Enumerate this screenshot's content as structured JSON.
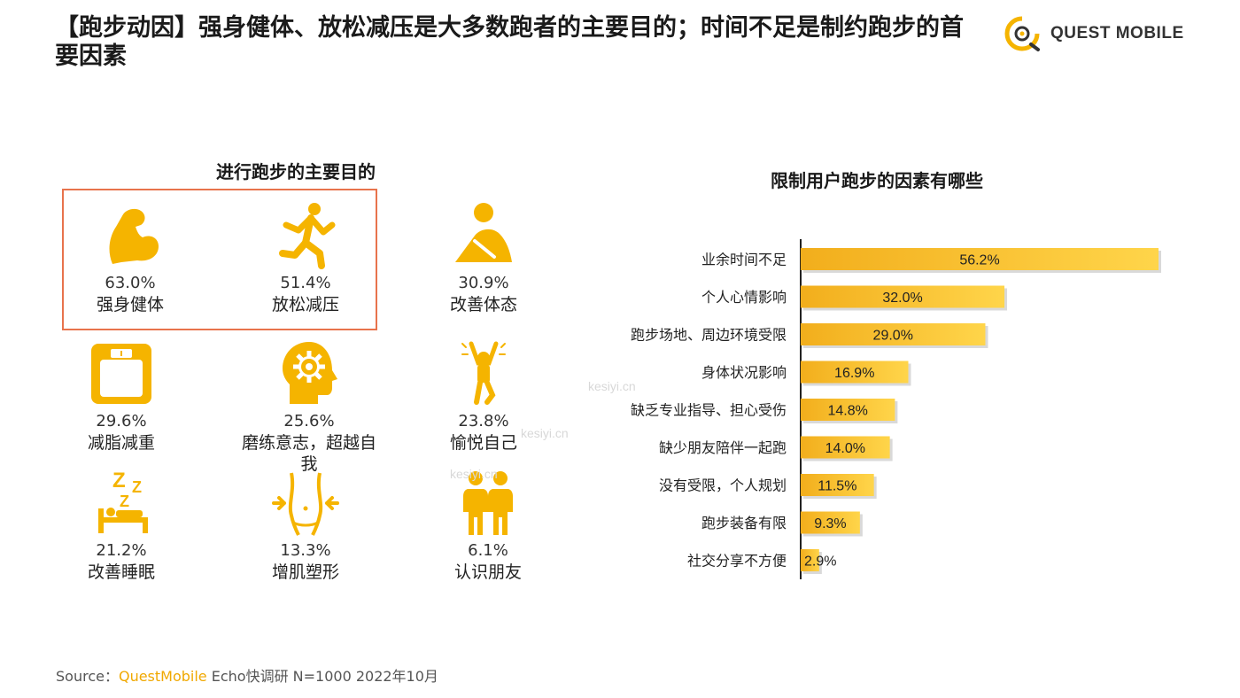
{
  "header": {
    "title": "【跑步动因】强身健体、放松减压是大多数跑者的主要目的；时间不足是制约跑步的首要因素",
    "logo_text": "QUEST MOBILE"
  },
  "left_panel": {
    "title": "进行跑步的主要目的",
    "items": [
      {
        "label": "强身健体",
        "value": "63.0%",
        "icon": "muscle-arm-icon"
      },
      {
        "label": "放松减压",
        "value": "51.4%",
        "icon": "runner-icon"
      },
      {
        "label": "改善体态",
        "value": "30.9%",
        "icon": "stretching-person-icon"
      },
      {
        "label": "减脂减重",
        "value": "29.6%",
        "icon": "scale-icon"
      },
      {
        "label": "磨练意志，超越自我",
        "value": "25.6%",
        "icon": "head-gear-icon"
      },
      {
        "label": "愉悦自己",
        "value": "23.8%",
        "icon": "celebrating-person-icon"
      },
      {
        "label": "改善睡眠",
        "value": "21.2%",
        "icon": "sleep-bed-icon"
      },
      {
        "label": "增肌塑形",
        "value": "13.3%",
        "icon": "waist-shape-icon"
      },
      {
        "label": "认识朋友",
        "value": "6.1%",
        "icon": "two-people-icon"
      }
    ]
  },
  "chart_data": {
    "type": "bar",
    "orientation": "horizontal",
    "title": "限制用户跑步的因素有哪些",
    "categories": [
      "业余时间不足",
      "个人心情影响",
      "跑步场地、周边环境受限",
      "身体状况影响",
      "缺乏专业指导、担心受伤",
      "缺少朋友陪伴一起跑",
      "没有受限，个人规划",
      "跑步装备有限",
      "社交分享不方便"
    ],
    "values": [
      56.2,
      32.0,
      29.0,
      16.9,
      14.8,
      14.0,
      11.5,
      9.3,
      2.9
    ],
    "labels": [
      "56.2%",
      "32.0%",
      "29.0%",
      "16.9%",
      "14.8%",
      "14.0%",
      "11.5%",
      "9.3%",
      "2.9%"
    ],
    "xlim": [
      0,
      56.2
    ],
    "xlabel": "",
    "ylabel": ""
  },
  "watermarks": [
    "kesiyi.cn",
    "kesiyi.cn",
    "kesiyi.cn"
  ],
  "source": {
    "prefix": "Source：",
    "brand": "QuestMobile",
    "rest": " Echo快调研 N=1000 2022年10月"
  },
  "colors": {
    "accent": "#f5b400",
    "bar_start": "#f2ae1c",
    "bar_end": "#ffd54a",
    "box": "#e8734c"
  }
}
